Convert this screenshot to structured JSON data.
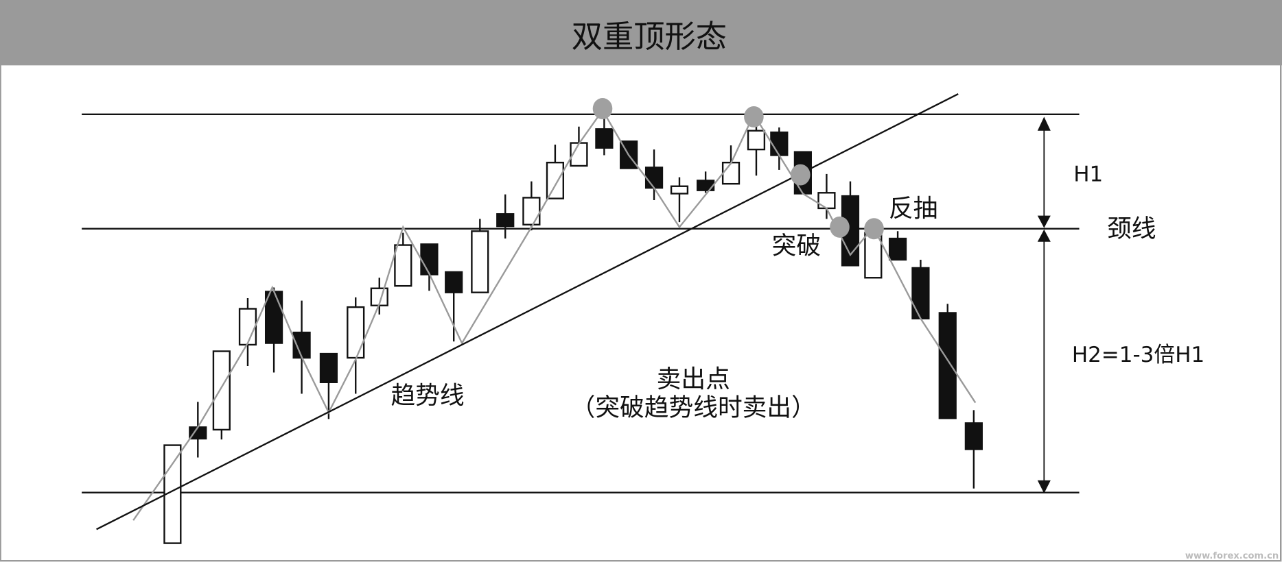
{
  "title": "双重顶形态",
  "labels": {
    "h1": "H1",
    "neckline": "颈线",
    "pullback": "反抽",
    "breakout": "突破",
    "h2": "H2=1-3倍H1",
    "trendline": "趋势线",
    "sell_point": "卖出点",
    "sell_note": "（突破趋势线时卖出）"
  },
  "watermark": "www.forex.com.cn",
  "colors": {
    "title_bar": "#9a9a9a",
    "marker": "#a0a0a0",
    "zigzag": "#9a9a9a",
    "bear_candle": "#111111",
    "bull_candle": "#ffffff"
  }
}
